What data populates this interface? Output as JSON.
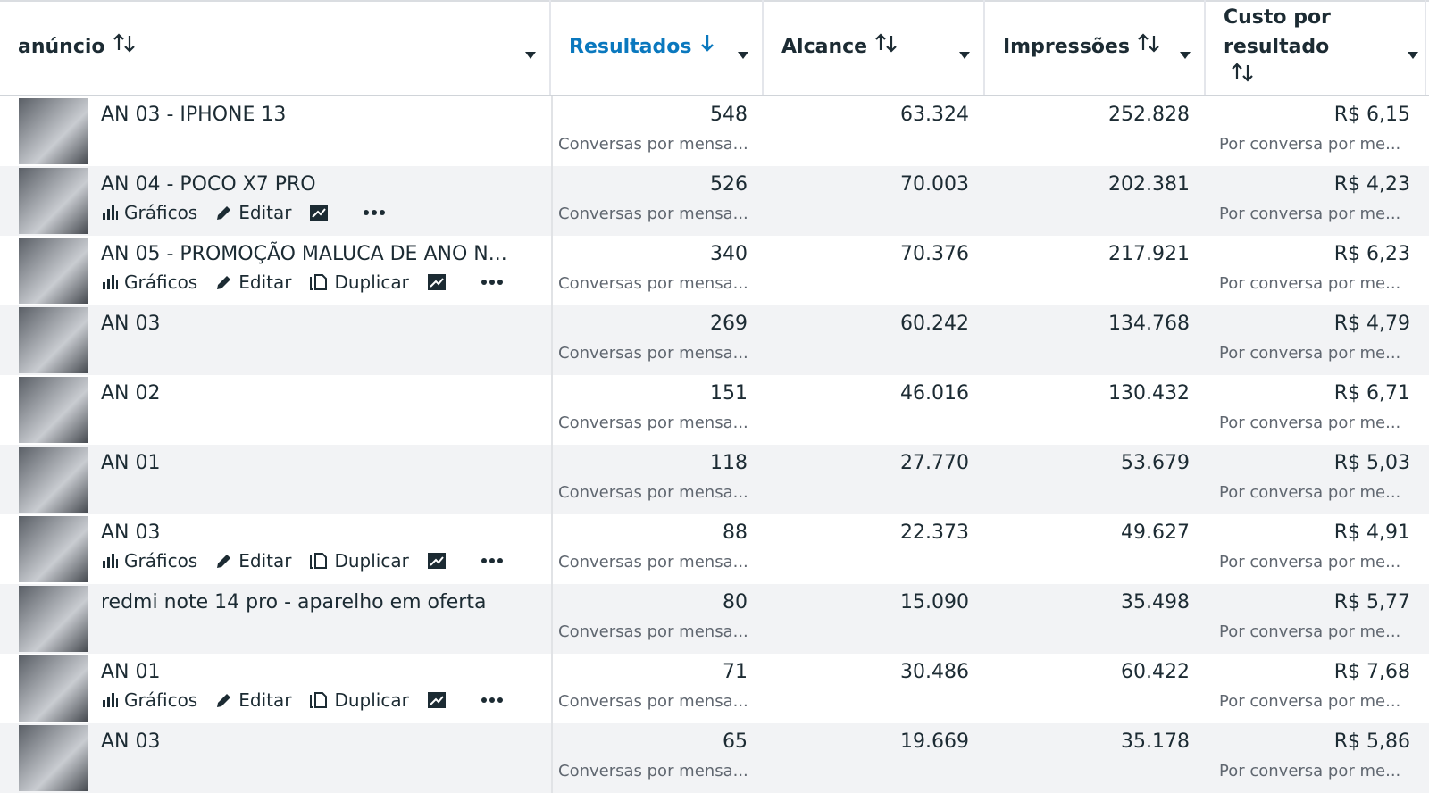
{
  "header": {
    "columns": [
      "anúncio",
      "Resultados",
      "Alcance",
      "Impressões",
      "Custo por resultado"
    ]
  },
  "rows": [
    {
      "name": "AN 03 - IPHONE 13",
      "actions": [],
      "results": "548",
      "results_label": "Conversas por mensa...",
      "reach": "63.324",
      "impressions": "252.828",
      "cost": "R$ 6,15",
      "cost_label": "Por conversa por me..."
    },
    {
      "name": "AN 04 - POCO X7 PRO",
      "actions": [
        "Gráficos",
        "Editar"
      ],
      "results": "526",
      "results_label": "Conversas por mensa...",
      "reach": "70.003",
      "impressions": "202.381",
      "cost": "R$ 4,23",
      "cost_label": "Por conversa por me..."
    },
    {
      "name": "AN 05 - PROMOÇÃO MALUCA DE ANO N...",
      "actions": [
        "Gráficos",
        "Editar",
        "Duplicar"
      ],
      "results": "340",
      "results_label": "Conversas por mensa...",
      "reach": "70.376",
      "impressions": "217.921",
      "cost": "R$ 6,23",
      "cost_label": "Por conversa por me..."
    },
    {
      "name": "AN 03",
      "actions": [],
      "results": "269",
      "results_label": "Conversas por mensa...",
      "reach": "60.242",
      "impressions": "134.768",
      "cost": "R$ 4,79",
      "cost_label": "Por conversa por me..."
    },
    {
      "name": "AN 02",
      "actions": [],
      "results": "151",
      "results_label": "Conversas por mensa...",
      "reach": "46.016",
      "impressions": "130.432",
      "cost": "R$ 6,71",
      "cost_label": "Por conversa por me..."
    },
    {
      "name": "AN 01",
      "actions": [],
      "results": "118",
      "results_label": "Conversas por mensa...",
      "reach": "27.770",
      "impressions": "53.679",
      "cost": "R$ 5,03",
      "cost_label": "Por conversa por me..."
    },
    {
      "name": "AN 03",
      "actions": [
        "Gráficos",
        "Editar",
        "Duplicar"
      ],
      "results": "88",
      "results_label": "Conversas por mensa...",
      "reach": "22.373",
      "impressions": "49.627",
      "cost": "R$ 4,91",
      "cost_label": "Por conversa por me..."
    },
    {
      "name": "redmi note 14 pro - aparelho em oferta",
      "actions": [],
      "results": "80",
      "results_label": "Conversas por mensa...",
      "reach": "15.090",
      "impressions": "35.498",
      "cost": "R$ 5,77",
      "cost_label": "Por conversa por me..."
    },
    {
      "name": "AN 01",
      "actions": [
        "Gráficos",
        "Editar",
        "Duplicar"
      ],
      "results": "71",
      "results_label": "Conversas por mensa...",
      "reach": "30.486",
      "impressions": "60.422",
      "cost": "R$ 7,68",
      "cost_label": "Por conversa por me..."
    },
    {
      "name": "AN 03",
      "actions": [],
      "results": "65",
      "results_label": "Conversas por mensa...",
      "reach": "19.669",
      "impressions": "35.178",
      "cost": "R$ 5,86",
      "cost_label": "Por conversa por me..."
    }
  ]
}
